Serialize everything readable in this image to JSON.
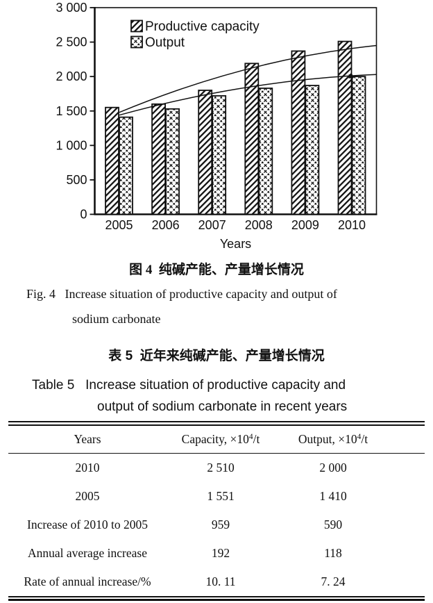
{
  "figure4": {
    "caption_zh": "图 4  纯碱产能、产量增长情况",
    "caption_en_line1": "Fig. 4   Increase situation of productive capacity and output of",
    "caption_en_line2": "sodium carbonate"
  },
  "table5": {
    "caption_zh": "表 5  近年来纯碱产能、产量增长情况",
    "caption_en_line1": "Table 5   Increase situation of productive capacity and",
    "caption_en_line2": "output of sodium carbonate in recent years",
    "columns": [
      {
        "pre": "Years",
        "sup": "",
        "post": ""
      },
      {
        "pre": "Capacity, ×10",
        "sup": "4",
        "post": "/t"
      },
      {
        "pre": "Output, ×10",
        "sup": "4",
        "post": "/t"
      }
    ],
    "rows": [
      {
        "label": "2010",
        "capacity": "2 510",
        "output": "2 000"
      },
      {
        "label": "2005",
        "capacity": "1 551",
        "output": "1 410"
      },
      {
        "label": "Increase of 2010 to 2005",
        "capacity": "959",
        "output": "590"
      },
      {
        "label": "Annual average increase",
        "capacity": "192",
        "output": "118"
      },
      {
        "label": "Rate of annual increase/%",
        "capacity": "10. 11",
        "output": "7. 24"
      }
    ]
  },
  "chart_data": {
    "type": "bar",
    "title": "",
    "categories": [
      "2005",
      "2006",
      "2007",
      "2008",
      "2009",
      "2010"
    ],
    "series": [
      {
        "name": "Productive capacity",
        "pattern": "diagonal-hatch",
        "values": [
          1551,
          1600,
          1800,
          2190,
          2370,
          2510
        ]
      },
      {
        "name": "Output",
        "pattern": "cross-hatch",
        "values": [
          1410,
          1530,
          1720,
          1830,
          1870,
          2000
        ]
      }
    ],
    "trend_lines": [
      {
        "series": "Productive capacity",
        "from_value": 1480,
        "mid_value": 2110,
        "to_value": 2450,
        "marker_end": false
      },
      {
        "series": "Output",
        "from_value": 1440,
        "mid_value": 1845,
        "to_value": 2030,
        "marker_end": true
      }
    ],
    "xlabel": "Years",
    "ylabel": "",
    "ylim": [
      0,
      3000
    ],
    "ytick_values": [
      0,
      500,
      1000,
      1500,
      2000,
      2500,
      3000
    ],
    "ytick_labels": [
      "0",
      "500",
      "1 000",
      "1 500",
      "2 000",
      "2 500",
      "3 000"
    ],
    "legend_position": "top-left-inside",
    "grid": false,
    "ink_color": "#111111",
    "background_color": "#ffffff"
  }
}
